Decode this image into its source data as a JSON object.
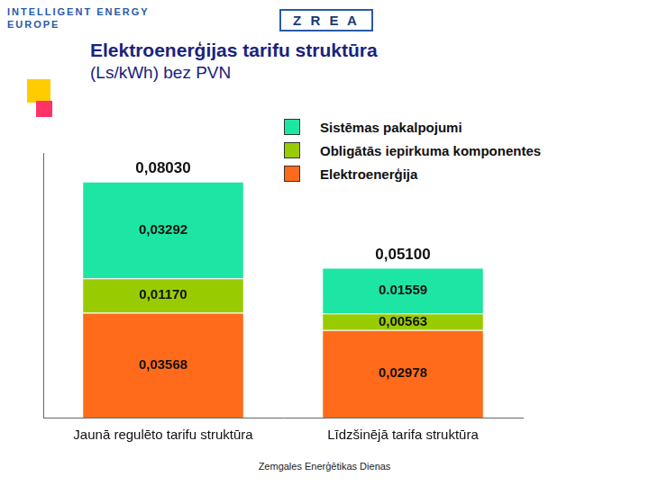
{
  "header": {
    "logos": [
      "INTELLIGENT ENERGY",
      "EUROPE",
      "Z R E A"
    ]
  },
  "footer": "Zemgales Enerģētikas Dienas",
  "chart_data": {
    "type": "bar",
    "title": "Elektroenerģijas tarifu struktūra",
    "subtitle": "(Ls/kWh) bez PVN",
    "categories": [
      "Jaunā regulēto tarifu struktūra",
      "Līdzšinējā tarifa struktūra"
    ],
    "stacked": true,
    "data_labels": true,
    "tick_labels": "x",
    "grid": false,
    "legend": "top-right",
    "ylim": [
      0,
      0.09
    ],
    "series": [
      {
        "name": "Elektroenerģija",
        "color": "#ff6b1a",
        "values": [
          0.03568,
          0.02978
        ],
        "value_labels": [
          "0,03568",
          "0,02978"
        ]
      },
      {
        "name": "Obligātās iepirkuma komponentes",
        "color": "#99cc00",
        "values": [
          0.0117,
          0.00563
        ],
        "value_labels": [
          "0,01170",
          "0,00563"
        ]
      },
      {
        "name": "Sistēmas pakalpojumi",
        "color": "#1de6a4",
        "values": [
          0.03292,
          0.01559
        ],
        "value_labels": [
          "0,03292",
          "0.01559"
        ]
      }
    ],
    "totals": [
      0.0803,
      0.051
    ],
    "total_labels": [
      "0,08030",
      "0,05100"
    ]
  }
}
